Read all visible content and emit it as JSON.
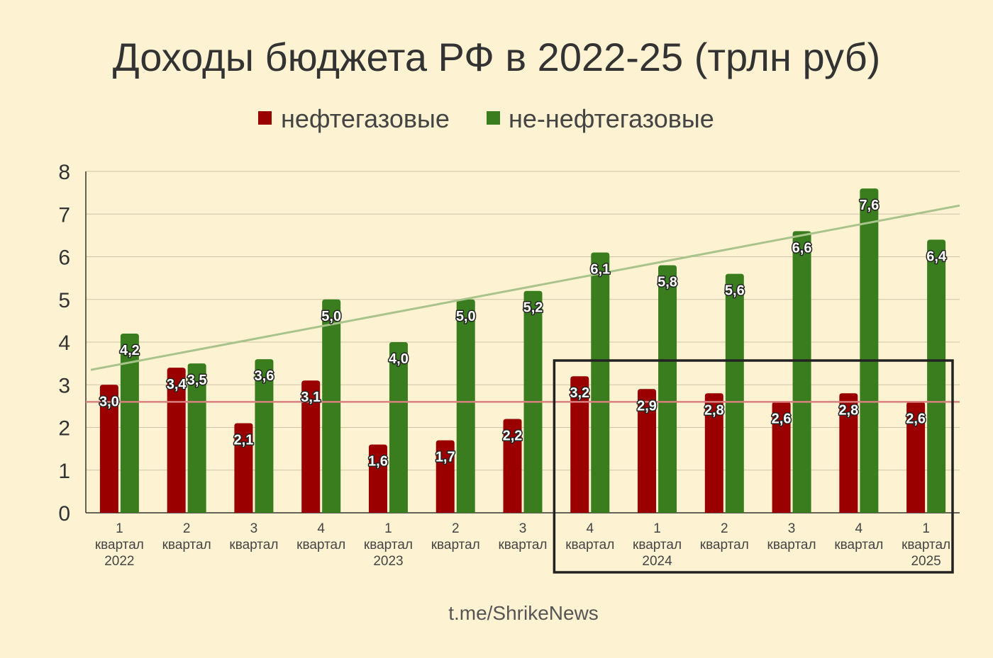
{
  "chart_data": {
    "type": "bar",
    "title": "Доходы бюджета РФ в 2022-25 (трлн руб)",
    "categories": [
      [
        "1",
        "квартал",
        "2022"
      ],
      [
        "2",
        "квартал",
        ""
      ],
      [
        "3",
        "квартал",
        ""
      ],
      [
        "4",
        "квартал",
        ""
      ],
      [
        "1",
        "квартал",
        "2023"
      ],
      [
        "2",
        "квартал",
        ""
      ],
      [
        "3",
        "квартал",
        ""
      ],
      [
        "4",
        "квартал",
        ""
      ],
      [
        "1",
        "квартал",
        "2024"
      ],
      [
        "2",
        "квартал",
        ""
      ],
      [
        "3",
        "квартал",
        ""
      ],
      [
        "4",
        "квартал",
        ""
      ],
      [
        "1",
        "квартал",
        "2025"
      ]
    ],
    "series": [
      {
        "name": "нефтегазовые",
        "color": "#9a0000",
        "values": [
          3.0,
          3.4,
          2.1,
          3.1,
          1.6,
          1.7,
          2.2,
          3.2,
          2.9,
          2.8,
          2.6,
          2.8,
          2.6
        ],
        "labels": [
          "3,0",
          "3,4",
          "2,1",
          "3,1",
          "1,6",
          "1,7",
          "2,2",
          "3,2",
          "2,9",
          "2,8",
          "2,6",
          "2,8",
          "2,6"
        ]
      },
      {
        "name": "не-нефтегазовые",
        "color": "#3a7d1e",
        "values": [
          4.2,
          3.5,
          3.6,
          5.0,
          4.0,
          5.0,
          5.2,
          6.1,
          5.8,
          5.6,
          6.6,
          7.6,
          6.4
        ],
        "labels": [
          "4,2",
          "3,5",
          "3,6",
          "5,0",
          "4,0",
          "5,0",
          "5,2",
          "6,1",
          "5,8",
          "5,6",
          "6,6",
          "7,6",
          "6,4"
        ]
      }
    ],
    "ylim": [
      0,
      8
    ],
    "yticks": [
      "0",
      "1",
      "2",
      "3",
      "4",
      "5",
      "6",
      "7",
      "8"
    ],
    "grid": true,
    "legend": "top-center",
    "reference_lines": [
      {
        "kind": "horizontal",
        "y": 2.6,
        "color": "#d98080"
      },
      {
        "kind": "trend",
        "y_start": 3.35,
        "y_end": 7.2,
        "color": "#a9c48a"
      }
    ],
    "highlight": {
      "from_category": 7,
      "to_category": 12,
      "color": "#222222"
    }
  },
  "source": "t.me/ShrikeNews"
}
